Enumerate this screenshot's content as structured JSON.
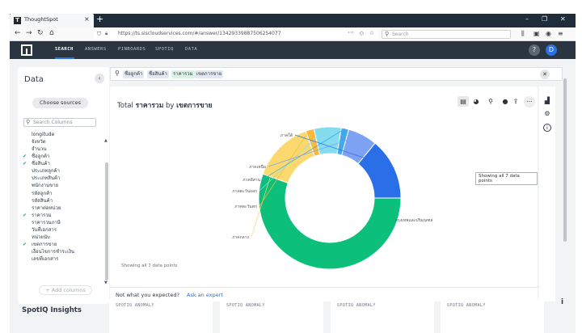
{
  "browser": {
    "tab_title": "ThoughtSpot",
    "url": "https://ts.siscloudservices.com/#/answer/134293398875062540​77",
    "search_placeholder": "Search"
  },
  "app": {
    "nav": [
      "SEARCH",
      "ANSWERS",
      "PINBOARDS",
      "SPOTIQ",
      "DATA"
    ],
    "active_nav": "SEARCH",
    "help_label": "?",
    "avatar_initial": "D"
  },
  "data_panel": {
    "title": "Data",
    "choose_sources": "Choose sources",
    "search_placeholder": "Search Columns",
    "columns": [
      {
        "label": "longitude",
        "checked": false
      },
      {
        "label": "จังหวัด",
        "checked": false
      },
      {
        "label": "จำนวน",
        "checked": false
      },
      {
        "label": "ชื่อลูกค้า",
        "checked": true
      },
      {
        "label": "ชื่อสินค้า",
        "checked": true
      },
      {
        "label": "ประเภทลูกค้า",
        "checked": false
      },
      {
        "label": "ประเภทสินค้า",
        "checked": false
      },
      {
        "label": "พนักงานขาย",
        "checked": false
      },
      {
        "label": "รหัสลูกค้า",
        "checked": false
      },
      {
        "label": "รหัสสินค้า",
        "checked": false
      },
      {
        "label": "ราคาต่อหน่วย",
        "checked": false
      },
      {
        "label": "ราคารวม",
        "checked": true
      },
      {
        "label": "ราคารวมภาษี",
        "checked": false
      },
      {
        "label": "วันที่เอกสาร",
        "checked": false
      },
      {
        "label": "หน่วยนับ",
        "checked": false
      },
      {
        "label": "เขตการขาย",
        "checked": true
      },
      {
        "label": "เงื่อนไขการชำระเงิน",
        "checked": false
      },
      {
        "label": "เลขที่เอกสาร",
        "checked": false
      }
    ],
    "add_columns": "+ Add columns"
  },
  "search_tokens": [
    {
      "label": "ชื่อลูกค้า",
      "kind": "attribute"
    },
    {
      "label": "ชื่อสินค้า",
      "kind": "attribute"
    },
    {
      "label": "ราคารวม",
      "kind": "measure"
    },
    {
      "label": "เขตการขาย",
      "kind": "attribute"
    }
  ],
  "answer": {
    "title_prefix": "Total",
    "title_measure": "ราคารวม",
    "title_by": "by",
    "title_attribute": "เขตการขาย",
    "tooltip": "Showing all 7 data points",
    "showing": "Showing all 7 data points",
    "not_expected": "Not what you expected?",
    "ask_expert": "Ask an expert",
    "toolbar_icons": [
      "table-icon",
      "chart-type-icon",
      "pin-icon",
      "pin-board-icon",
      "share-icon",
      "more-icon"
    ]
  },
  "chart_data": {
    "type": "pie",
    "variant": "donut",
    "title": "Total ราคารวม by เขตการขาย",
    "categories": [
      "กรุงเทพและปริมณฑล",
      "ภาคกลาง",
      "ภาคตะวันตก",
      "ภาคตะวันออก",
      "ภาคอีสาน",
      "ภาคเหนือ",
      "ภาคใต้"
    ],
    "values": [
      55.5,
      14.0,
      1.9,
      6.2,
      1.7,
      6.7,
      14.0
    ],
    "colors": [
      "#0cbf7b",
      "#fbd96e",
      "#f9b93b",
      "#84dcee",
      "#3fa8ea",
      "#7ea2f3",
      "#2a6ee8"
    ],
    "legend": "none"
  },
  "spotiq": {
    "title": "SpotIQ Insights",
    "cards": [
      "SPOTIQ ANOMALY",
      "SPOTIQ ANOMALY",
      "SPOTIQ ANOMALY",
      "SPOTIQ ANOMALY"
    ]
  },
  "colors": {
    "header_bg": "#2b3541",
    "accent": "#2770ef",
    "check": "#1aa37a"
  }
}
